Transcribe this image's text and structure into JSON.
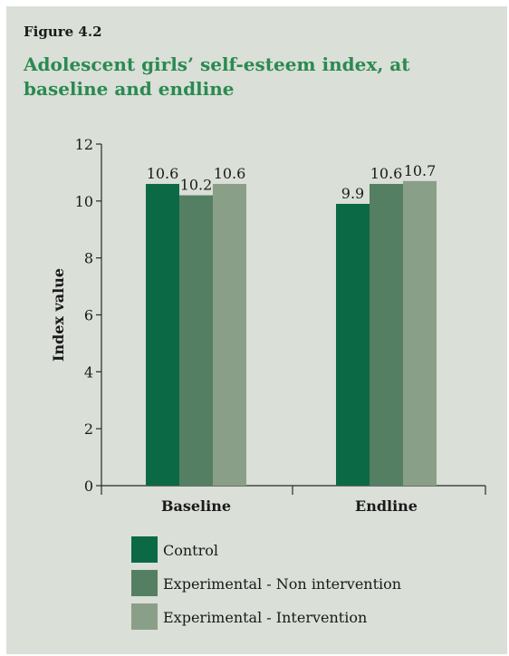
{
  "figure_label": "Figure 4.2",
  "colors": {
    "background": "#dadfd7",
    "title": "#2a8a52",
    "text": "#1a1a1a",
    "axis": "#2a2a2a"
  },
  "chart_data": {
    "type": "bar",
    "title": "Adolescent girls’ self-esteem index, at baseline and endline",
    "xlabel": "",
    "ylabel": "Index value",
    "categories": [
      "Baseline",
      "Endline"
    ],
    "ylim": [
      0,
      12
    ],
    "yticks": [
      0,
      2,
      4,
      6,
      8,
      10,
      12
    ],
    "grid": false,
    "legend_position": "bottom-left",
    "series": [
      {
        "name": "Control",
        "values": [
          10.6,
          9.9
        ],
        "labels": [
          "10.6",
          "9.9"
        ],
        "color": "#0b6a45"
      },
      {
        "name": "Experimental - Non intervention",
        "values": [
          10.2,
          10.6
        ],
        "labels": [
          "10.2",
          "10.6"
        ],
        "color": "#557f62"
      },
      {
        "name": "Experimental - Intervention",
        "values": [
          10.6,
          10.7
        ],
        "labels": [
          "10.6",
          "10.7"
        ],
        "color": "#8a9f88"
      }
    ]
  }
}
